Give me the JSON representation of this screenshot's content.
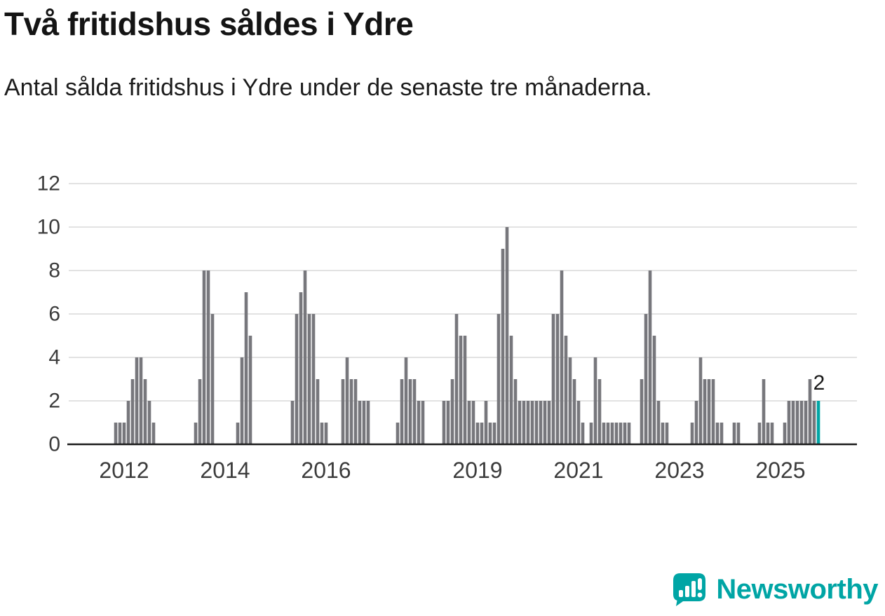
{
  "header": {
    "title": "Två fritidshus såldes i Ydre",
    "subtitle": "Antal sålda fritidshus i Ydre under de senaste tre månaderna."
  },
  "chart_data": {
    "type": "bar",
    "title": "Två fritidshus såldes i Ydre",
    "subtitle": "Antal sålda fritidshus i Ydre under de senaste tre månaderna.",
    "frequency": "monthly",
    "x_start": "2011-11",
    "x_end": "2025-10",
    "values": [
      1,
      1,
      1,
      2,
      3,
      4,
      4,
      3,
      2,
      1,
      0,
      0,
      0,
      0,
      0,
      0,
      0,
      0,
      0,
      1,
      3,
      8,
      8,
      6,
      0,
      0,
      0,
      0,
      0,
      1,
      4,
      7,
      5,
      0,
      0,
      0,
      0,
      0,
      0,
      0,
      0,
      0,
      2,
      6,
      7,
      8,
      6,
      6,
      3,
      1,
      1,
      0,
      0,
      0,
      3,
      4,
      3,
      3,
      2,
      2,
      2,
      0,
      0,
      0,
      0,
      0,
      0,
      1,
      3,
      4,
      3,
      3,
      2,
      2,
      0,
      0,
      0,
      0,
      2,
      2,
      3,
      6,
      5,
      5,
      2,
      2,
      1,
      1,
      2,
      1,
      1,
      6,
      9,
      10,
      5,
      3,
      2,
      2,
      2,
      2,
      2,
      2,
      2,
      2,
      6,
      6,
      8,
      5,
      4,
      3,
      2,
      1,
      0,
      1,
      4,
      3,
      1,
      1,
      1,
      1,
      1,
      1,
      1,
      0,
      0,
      3,
      6,
      8,
      5,
      2,
      1,
      1,
      0,
      0,
      0,
      0,
      0,
      1,
      2,
      4,
      3,
      3,
      3,
      1,
      1,
      0,
      0,
      1,
      1,
      0,
      0,
      0,
      0,
      1,
      3,
      1,
      1,
      0,
      0,
      1,
      2,
      2,
      2,
      2,
      2,
      3,
      2,
      2
    ],
    "x_tick_labels": [
      "2012",
      "2014",
      "2016",
      "2019",
      "2021",
      "2023",
      "2025"
    ],
    "x_tick_month_index": [
      2,
      26,
      50,
      86,
      110,
      134,
      158
    ],
    "y_ticks": [
      0,
      2,
      4,
      6,
      8,
      10,
      12
    ],
    "ylim": [
      0,
      12
    ],
    "grid": true,
    "legend": "none",
    "highlight_last": true,
    "annotation": {
      "text": "2",
      "target": "last-bar"
    },
    "colors": {
      "bar": "#77777c",
      "highlight": "#00a5a5",
      "grid": "#d9d9d9",
      "axis": "#1a1a1a",
      "tick_text": "#3c3c3c"
    }
  },
  "footer": {
    "brand": "Newsworthy",
    "brand_color": "#00a5a5",
    "logo_icon": "newsworthy-chart-bubble-icon"
  }
}
